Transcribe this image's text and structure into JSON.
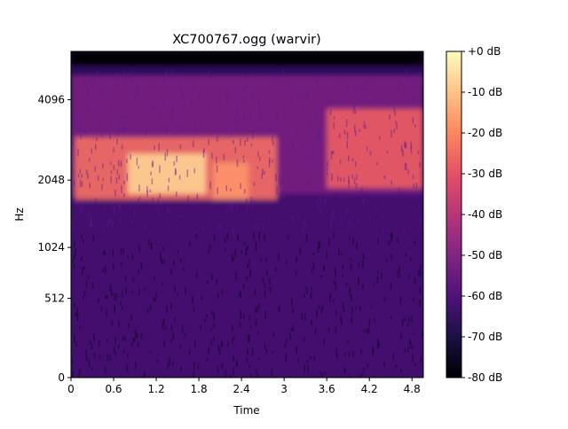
{
  "chart_data": {
    "type": "heatmap",
    "title": "XC700767.ogg (warvir)",
    "xlabel": "Time",
    "ylabel": "Hz",
    "xlim": [
      0,
      4.96
    ],
    "x_ticks": [
      0,
      0.6,
      1.2,
      1.8,
      2.4,
      3.0,
      3.6,
      4.2,
      4.8
    ],
    "x_tick_labels": [
      "0",
      "0.6",
      "1.2",
      "1.8",
      "2.4",
      "3",
      "3.6",
      "4.2",
      "4.8"
    ],
    "y_scale": "log-like (mel)",
    "y_ticks": [
      0,
      512,
      1024,
      2048,
      4096
    ],
    "y_tick_labels": [
      "0",
      "512",
      "1024",
      "2048",
      "4096"
    ],
    "colormap": "magma",
    "colorbar": {
      "range_db": [
        -80,
        0
      ],
      "ticks": [
        0,
        -10,
        -20,
        -30,
        -40,
        -50,
        -60,
        -70,
        -80
      ],
      "tick_labels": [
        "+0 dB",
        "-10 dB",
        "-20 dB",
        "-30 dB",
        "-40 dB",
        "-50 dB",
        "-60 dB",
        "-70 dB",
        "-80 dB"
      ]
    },
    "regions": [
      {
        "t_start": 0.0,
        "t_end": 4.96,
        "f_low": 0,
        "f_high": 1800,
        "level_db": -62
      },
      {
        "t_start": 0.0,
        "t_end": 4.96,
        "f_low": 1800,
        "f_high": 5000,
        "level_db": -52
      },
      {
        "t_start": 0.05,
        "t_end": 2.9,
        "f_low": 1700,
        "f_high": 3000,
        "level_db": -25
      },
      {
        "t_start": 0.8,
        "t_end": 1.9,
        "f_low": 1800,
        "f_high": 2600,
        "level_db": -8
      },
      {
        "t_start": 2.0,
        "t_end": 2.5,
        "f_low": 1700,
        "f_high": 2400,
        "level_db": -18
      },
      {
        "t_start": 3.6,
        "t_end": 4.96,
        "f_low": 1900,
        "f_high": 3800,
        "level_db": -28
      },
      {
        "t_start": 0.0,
        "t_end": 4.96,
        "f_low": 5400,
        "f_high": 6000,
        "level_db": -80
      }
    ]
  }
}
